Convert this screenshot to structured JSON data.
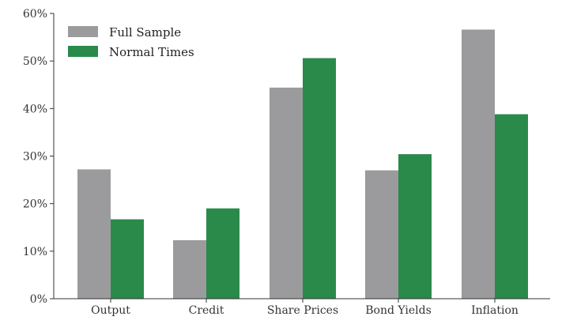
{
  "chart_data": {
    "type": "bar",
    "title": "",
    "xlabel": "",
    "ylabel": "",
    "categories": [
      "Output",
      "Credit",
      "Share Prices",
      "Bond Yields",
      "Inflation"
    ],
    "series": [
      {
        "name": "Full Sample",
        "values": [
          27.2,
          12.3,
          44.4,
          27.0,
          56.6
        ],
        "color": "#9b9b9d"
      },
      {
        "name": "Normal Times",
        "values": [
          16.7,
          19.0,
          50.6,
          30.4,
          38.8
        ],
        "color": "#2a8a4a"
      }
    ],
    "ylim": [
      0,
      60
    ],
    "yticks": [
      0,
      10,
      20,
      30,
      40,
      50,
      60
    ],
    "ytick_labels": [
      "0%",
      "10%",
      "20%",
      "30%",
      "40%",
      "50%",
      "60%"
    ],
    "grid": false,
    "legend_position": "top-left"
  }
}
